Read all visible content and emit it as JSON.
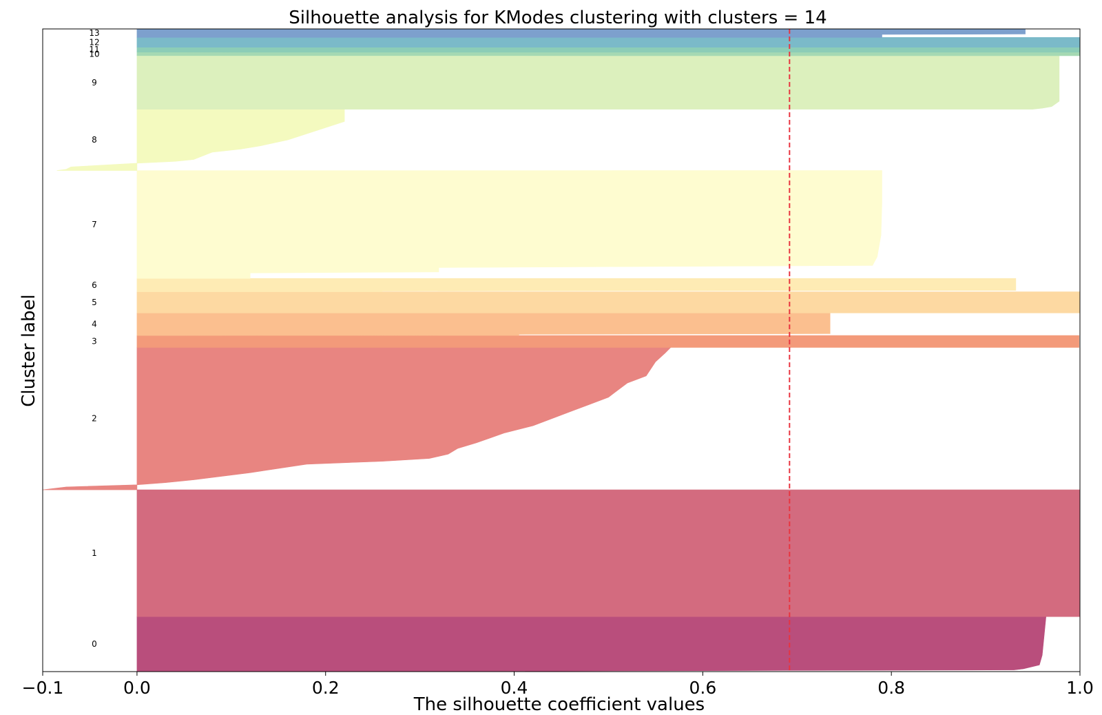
{
  "chart_data": {
    "type": "silhouette",
    "title": "Silhouette analysis for KModes clustering with clusters = 14",
    "xlabel": "The silhouette coefficient values",
    "ylabel": "Cluster label",
    "xlim": [
      -0.1,
      1.0
    ],
    "xticks": [
      -0.1,
      0.0,
      0.2,
      0.4,
      0.6,
      0.8,
      1.0
    ],
    "xtick_labels": [
      "−0.1",
      "0.0",
      "0.2",
      "0.4",
      "0.6",
      "0.8",
      "1.0"
    ],
    "ylim": [
      0,
      912
    ],
    "average_silhouette": 0.692,
    "average_line_color": "#e8343f",
    "clusters": [
      {
        "label": "0",
        "color": "#b94e7c",
        "y_start": 0,
        "profile": [
          [
            0,
            0.19
          ],
          [
            0.03,
            0.93
          ],
          [
            0.05,
            0.94
          ],
          [
            0.12,
            0.957
          ],
          [
            0.3,
            0.96
          ],
          [
            1,
            0.964
          ]
        ]
      },
      {
        "label": "1",
        "color": "#d36b7f",
        "y_start": 78,
        "profile": [
          [
            0,
            1.0
          ],
          [
            1,
            1.0
          ]
        ]
      },
      {
        "label": "2",
        "color": "#e88581",
        "y_start": 258,
        "profile": [
          [
            0,
            -0.1
          ],
          [
            0.02,
            -0.075
          ],
          [
            0.035,
            0.0
          ],
          [
            0.05,
            0.03
          ],
          [
            0.07,
            0.06
          ],
          [
            0.12,
            0.12
          ],
          [
            0.18,
            0.18
          ],
          [
            0.2,
            0.26
          ],
          [
            0.22,
            0.31
          ],
          [
            0.25,
            0.33
          ],
          [
            0.29,
            0.34
          ],
          [
            0.33,
            0.36
          ],
          [
            0.4,
            0.39
          ],
          [
            0.45,
            0.42
          ],
          [
            0.5,
            0.44
          ],
          [
            0.55,
            0.46
          ],
          [
            0.6,
            0.48
          ],
          [
            0.65,
            0.5
          ],
          [
            0.7,
            0.51
          ],
          [
            0.75,
            0.52
          ],
          [
            0.8,
            0.54
          ],
          [
            0.9,
            0.55
          ],
          [
            0.96,
            0.56
          ],
          [
            1,
            0.566
          ]
        ]
      },
      {
        "label": "3",
        "color": "#f39a7a",
        "y_start": 460,
        "profile": [
          [
            0,
            0.999
          ],
          [
            1,
            0.999
          ]
        ]
      },
      {
        "label": "4",
        "color": "#fbbf8f",
        "y_start": 477,
        "profile": [
          [
            0,
            0.405
          ],
          [
            0.05,
            0.405
          ],
          [
            0.08,
            0.735
          ],
          [
            1,
            0.735
          ]
        ]
      },
      {
        "label": "5",
        "color": "#fdd9a2",
        "y_start": 509,
        "profile": [
          [
            0,
            1.0
          ],
          [
            1,
            1.0
          ]
        ]
      },
      {
        "label": "6",
        "color": "#feebb4",
        "y_start": 539,
        "profile": [
          [
            0,
            0.26
          ],
          [
            0.05,
            0.26
          ],
          [
            0.1,
            0.932
          ],
          [
            1,
            0.932
          ]
        ]
      },
      {
        "label": "7",
        "color": "#fefcd0",
        "y_start": 558,
        "profile": [
          [
            0,
            0.12
          ],
          [
            0.05,
            0.12
          ],
          [
            0.06,
            0.32
          ],
          [
            0.1,
            0.32
          ],
          [
            0.12,
            0.78
          ],
          [
            0.2,
            0.785
          ],
          [
            0.4,
            0.789
          ],
          [
            0.7,
            0.79
          ],
          [
            1,
            0.79
          ]
        ]
      },
      {
        "label": "8",
        "color": "#f4fabf",
        "y_start": 711,
        "profile": [
          [
            0,
            -0.085
          ],
          [
            0.02,
            -0.075
          ],
          [
            0.06,
            -0.07
          ],
          [
            0.12,
            0.0
          ],
          [
            0.15,
            0.04
          ],
          [
            0.18,
            0.06
          ],
          [
            0.3,
            0.08
          ],
          [
            0.35,
            0.11
          ],
          [
            0.4,
            0.13
          ],
          [
            0.5,
            0.16
          ],
          [
            0.6,
            0.18
          ],
          [
            0.7,
            0.2
          ],
          [
            0.8,
            0.22
          ],
          [
            1,
            0.22
          ]
        ]
      },
      {
        "label": "9",
        "color": "#dcf0bd",
        "y_start": 798,
        "profile": [
          [
            0,
            0.95
          ],
          [
            0.02,
            0.96
          ],
          [
            0.05,
            0.97
          ],
          [
            0.15,
            0.978
          ],
          [
            1,
            0.978
          ]
        ]
      },
      {
        "label": "10",
        "color": "#a5d9b3",
        "y_start": 874,
        "profile": [
          [
            0,
            1.0
          ],
          [
            1,
            1.0
          ]
        ]
      },
      {
        "label": "11",
        "color": "#8ccdb7",
        "y_start": 879,
        "profile": [
          [
            0,
            1.0
          ],
          [
            1,
            1.0
          ]
        ]
      },
      {
        "label": "12",
        "color": "#7bbac9",
        "y_start": 886,
        "profile": [
          [
            0,
            1.0
          ],
          [
            1,
            1.0
          ]
        ]
      },
      {
        "label": "13",
        "color": "#7da0cd",
        "y_start": 900,
        "profile": [
          [
            0,
            0.79
          ],
          [
            0.35,
            0.79
          ],
          [
            0.4,
            0.942
          ],
          [
            1,
            0.942
          ]
        ]
      }
    ],
    "cluster_ends": [
      78,
      258,
      460,
      477,
      509,
      539,
      558,
      711,
      798,
      874,
      879,
      886,
      900,
      912
    ]
  }
}
